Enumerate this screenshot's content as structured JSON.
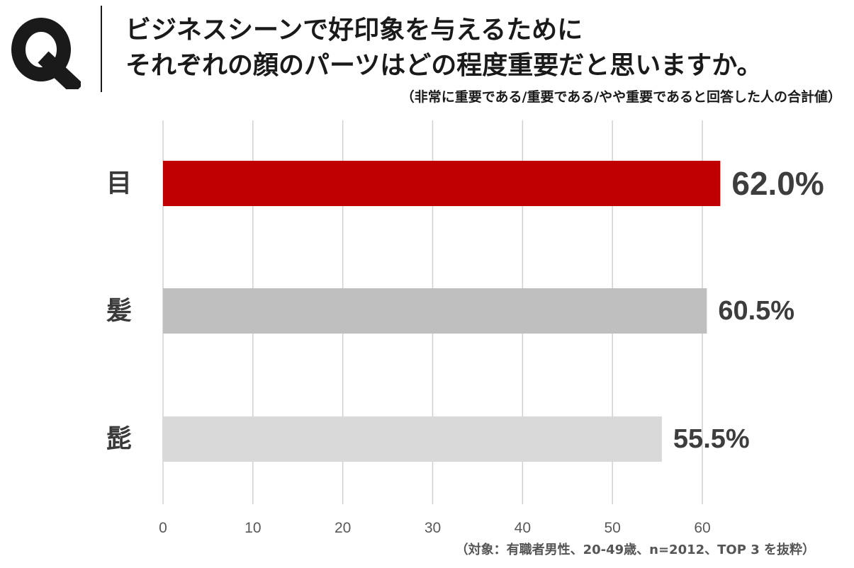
{
  "question_mark": "Q",
  "title": {
    "line1": "ビジネスシーンで好印象を与えるために",
    "line2": "それぞれの顔のパーツはどの程度重要だと思いますか。"
  },
  "subtitle": "（非常に重要である/重要である/やや重要であると回答した人の合計値）",
  "footnote": "（対象：有職者男性、20-49歳、n=2012、TOP 3 を抜粋）",
  "chart_data": {
    "type": "bar",
    "orientation": "horizontal",
    "categories": [
      "目",
      "髪",
      "髭"
    ],
    "values": [
      62.0,
      60.5,
      55.5
    ],
    "value_labels": [
      "62.0%",
      "60.5%",
      "55.5%"
    ],
    "bar_colors": [
      "#c00000",
      "#bfbfbf",
      "#d9d9d9"
    ],
    "xlim": [
      0,
      60
    ],
    "xticks": [
      0,
      10,
      20,
      30,
      40,
      50,
      60
    ],
    "grid": true
  }
}
